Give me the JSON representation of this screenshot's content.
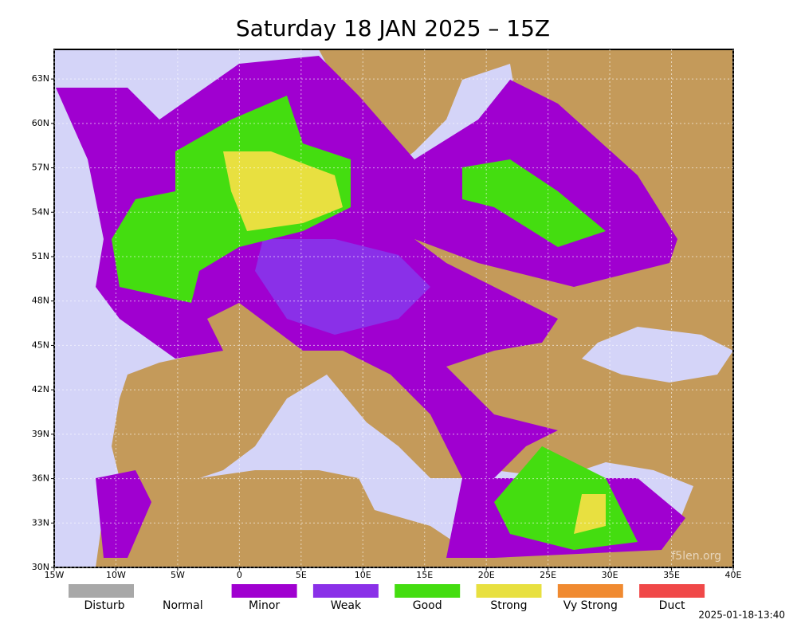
{
  "title": "Saturday 18 JAN 2025 – 15Z",
  "lon_range": [
    -15,
    40
  ],
  "lat_range": [
    30,
    65
  ],
  "lon_ticks": [
    {
      "value": -15,
      "label": "15W"
    },
    {
      "value": -10,
      "label": "10W"
    },
    {
      "value": -5,
      "label": "5W"
    },
    0,
    {
      "value": 5,
      "label": "5E"
    },
    {
      "value": 10,
      "label": "10E"
    },
    {
      "value": 15,
      "label": "15E"
    },
    {
      "value": 20,
      "label": "20E"
    },
    {
      "value": 25,
      "label": "25E"
    },
    {
      "value": 30,
      "label": "30E"
    },
    {
      "value": 35,
      "label": "35E"
    },
    {
      "value": 40,
      "label": "40E"
    }
  ],
  "lat_ticks": [
    {
      "value": 30,
      "label": "30N"
    },
    {
      "value": 33,
      "label": "33N"
    },
    {
      "value": 36,
      "label": "36N"
    },
    {
      "value": 39,
      "label": "39N"
    },
    {
      "value": 42,
      "label": "42N"
    },
    {
      "value": 45,
      "label": "45N"
    },
    {
      "value": 48,
      "label": "48N"
    },
    {
      "value": 51,
      "label": "51N"
    },
    {
      "value": 54,
      "label": "54N"
    },
    {
      "value": 57,
      "label": "57N"
    },
    {
      "value": 60,
      "label": "60N"
    },
    {
      "value": 63,
      "label": "63N"
    }
  ],
  "legend": [
    {
      "label": "Disturb",
      "color": "#a8a8a8"
    },
    {
      "label": "Normal"
    },
    {
      "label": "Minor",
      "color": "#a000d0"
    },
    {
      "label": "Weak",
      "color": "#8a30e8"
    },
    {
      "label": "Good",
      "color": "#44dd10"
    },
    {
      "label": "Strong",
      "color": "#e8e040"
    },
    {
      "label": "Vy Strong",
      "color": "#f08a30"
    },
    {
      "label": "Duct",
      "color": "#f04848"
    }
  ],
  "watermark": "f5len.org",
  "timestamp": "2025-01-18-13:40"
}
